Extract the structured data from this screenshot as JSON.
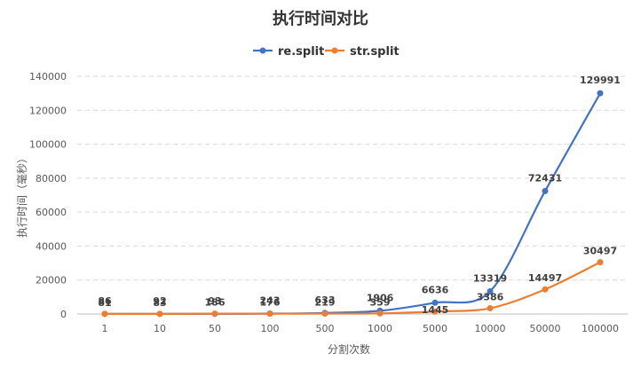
{
  "chart_data": {
    "type": "line",
    "title": "执行时间对比",
    "xlabel": "分割次数",
    "ylabel": "执行时间（毫秒）",
    "categories": [
      "1",
      "10",
      "50",
      "100",
      "500",
      "1000",
      "5000",
      "10000",
      "50000",
      "100000"
    ],
    "ylim": [
      0,
      140000
    ],
    "yticks": [
      "0",
      "20000",
      "40000",
      "60000",
      "80000",
      "100000",
      "120000",
      "140000"
    ],
    "grid": true,
    "legend_position": "top",
    "series": [
      {
        "name": "re.split",
        "color": "#4472c4",
        "values": [
          86,
          92,
          93,
          243,
          633,
          1906,
          6636,
          13319,
          72431,
          129991
        ],
        "labels": [
          "86",
          "92",
          "93",
          "243",
          "633",
          "1906",
          "6636",
          "13319",
          "72431",
          "129991"
        ]
      },
      {
        "name": "str.split",
        "color": "#ed7d31",
        "values": [
          81,
          83,
          186,
          176,
          219,
          359,
          1445,
          3386,
          14497,
          30497
        ],
        "labels": [
          "81",
          "83",
          "186",
          "176",
          "219",
          "359",
          "1445",
          "3386",
          "14497",
          "30497"
        ]
      }
    ]
  }
}
